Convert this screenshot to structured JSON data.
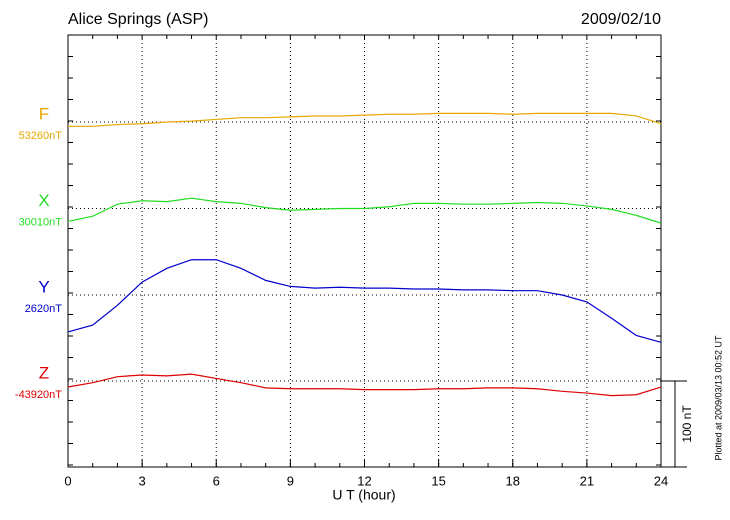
{
  "chart_data": {
    "type": "line",
    "title": "Alice Springs (ASP)",
    "date": "2009/02/10",
    "xlabel": "U T (hour)",
    "footnote": "Plotted at 2009/03/13 00:52 UT",
    "xlim": [
      0,
      24
    ],
    "xticks": [
      0,
      3,
      6,
      9,
      12,
      15,
      18,
      21,
      24
    ],
    "x": [
      0,
      1,
      2,
      3,
      4,
      5,
      6,
      7,
      8,
      9,
      10,
      11,
      12,
      13,
      14,
      15,
      16,
      17,
      18,
      19,
      20,
      21,
      22,
      23,
      24
    ],
    "grid": true,
    "scale_bar": {
      "value": 100,
      "label": "100 nT"
    },
    "series": [
      {
        "name": "F",
        "color": "#e8a800",
        "baseline": {
          "value": 53260,
          "label": "53260nT"
        },
        "values": [
          53255,
          53255,
          53257,
          53258,
          53260,
          53261,
          53263,
          53265,
          53265,
          53266,
          53267,
          53267,
          53268,
          53269,
          53269,
          53270,
          53270,
          53270,
          53269,
          53270,
          53270,
          53270,
          53270,
          53267,
          53258
        ]
      },
      {
        "name": "X",
        "color": "#22dd22",
        "baseline": {
          "value": 30010,
          "label": "30010nT"
        },
        "values": [
          29995,
          30001,
          30015,
          30019,
          30018,
          30022,
          30018,
          30016,
          30011,
          30008,
          30009,
          30010,
          30010,
          30012,
          30016,
          30016,
          30015,
          30015,
          30016,
          30017,
          30016,
          30013,
          30009,
          30002,
          29993
        ]
      },
      {
        "name": "Y",
        "color": "#0000cc",
        "baseline": {
          "value": 2620,
          "label": "2620nT"
        },
        "values": [
          2577,
          2585,
          2608,
          2635,
          2651,
          2661,
          2661,
          2651,
          2637,
          2630,
          2628,
          2629,
          2628,
          2628,
          2627,
          2627,
          2626,
          2626,
          2625,
          2625,
          2620,
          2612,
          2593,
          2573,
          2565
        ]
      },
      {
        "name": "Z",
        "color": "#dd0000",
        "baseline": {
          "value": -43920,
          "label": "-43920nT"
        },
        "values": [
          -43927,
          -43922,
          -43915,
          -43913,
          -43914,
          -43912,
          -43917,
          -43922,
          -43928,
          -43929,
          -43929,
          -43929,
          -43930,
          -43930,
          -43930,
          -43929,
          -43929,
          -43928,
          -43928,
          -43929,
          -43932,
          -43934,
          -43937,
          -43936,
          -43927
        ]
      }
    ]
  }
}
